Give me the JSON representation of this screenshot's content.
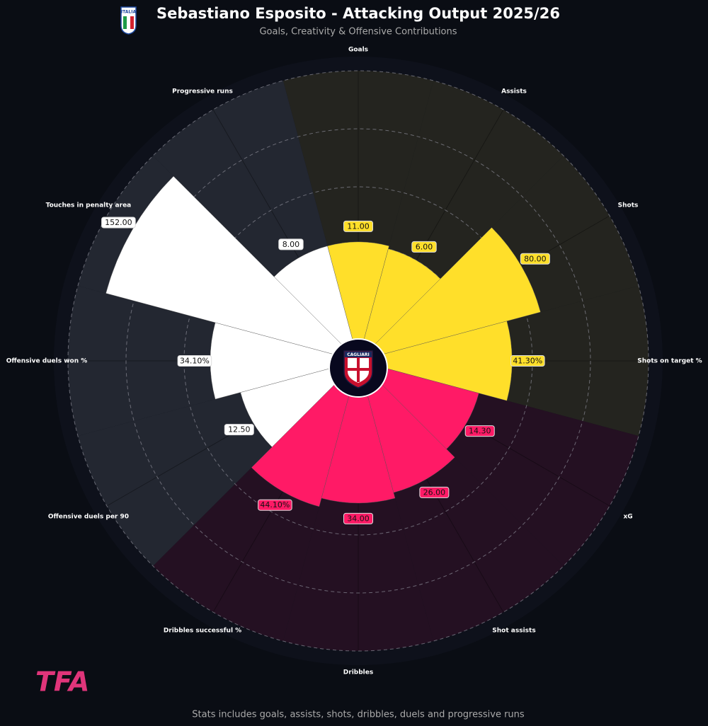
{
  "chart_data": {
    "type": "pizza",
    "title": "Sebastiano Esposito - Attacking Output 2025/26",
    "subtitle": "Goals, Creativity & Offensive Contributions",
    "footnote": "Stats includes goals, assists, shots, dribbles, duels and progressive runs",
    "brand": "TFA",
    "badge_text": "ITALIA",
    "club_text": "CAGLIARI",
    "categories": [
      "Goals",
      "Assists",
      "Shots",
      "Shots on target %",
      "xG",
      "Shot assists",
      "Dribbles",
      "Dribbles successful %",
      "Offensive duels per 90",
      "Offensive duels won %",
      "Touches in penalty area",
      "Progressive runs"
    ],
    "values": [
      11,
      6,
      80,
      41.3,
      14.3,
      26,
      34,
      44.1,
      12.5,
      34.1,
      152,
      8
    ],
    "value_labels": [
      "11.00",
      "6.00",
      "80.00",
      "41.30%",
      "14.30",
      "26.00",
      "34.00",
      "44.10%",
      "12.50",
      "34.10%",
      "152.00",
      "8.00"
    ],
    "percentiles": [
      41,
      40,
      65,
      53,
      43,
      47,
      49,
      52,
      42,
      51,
      90,
      41
    ],
    "rlim": [
      0,
      100
    ],
    "rticks": [
      20,
      40,
      60,
      80,
      100
    ],
    "grid": true,
    "colors": [
      "#ffdf2a",
      "#ffdf2a",
      "#ffdf2a",
      "#ffdf2a",
      "#ff1a66",
      "#ff1a66",
      "#ff1a66",
      "#ff1a66",
      "#ffffff",
      "#ffffff",
      "#ffffff",
      "#ffffff"
    ],
    "background_colors": [
      "#24241f",
      "#24241f",
      "#24241f",
      "#24241f",
      "#241022",
      "#241022",
      "#241022",
      "#241022",
      "#232731",
      "#232731",
      "#232731",
      "#232731"
    ]
  }
}
